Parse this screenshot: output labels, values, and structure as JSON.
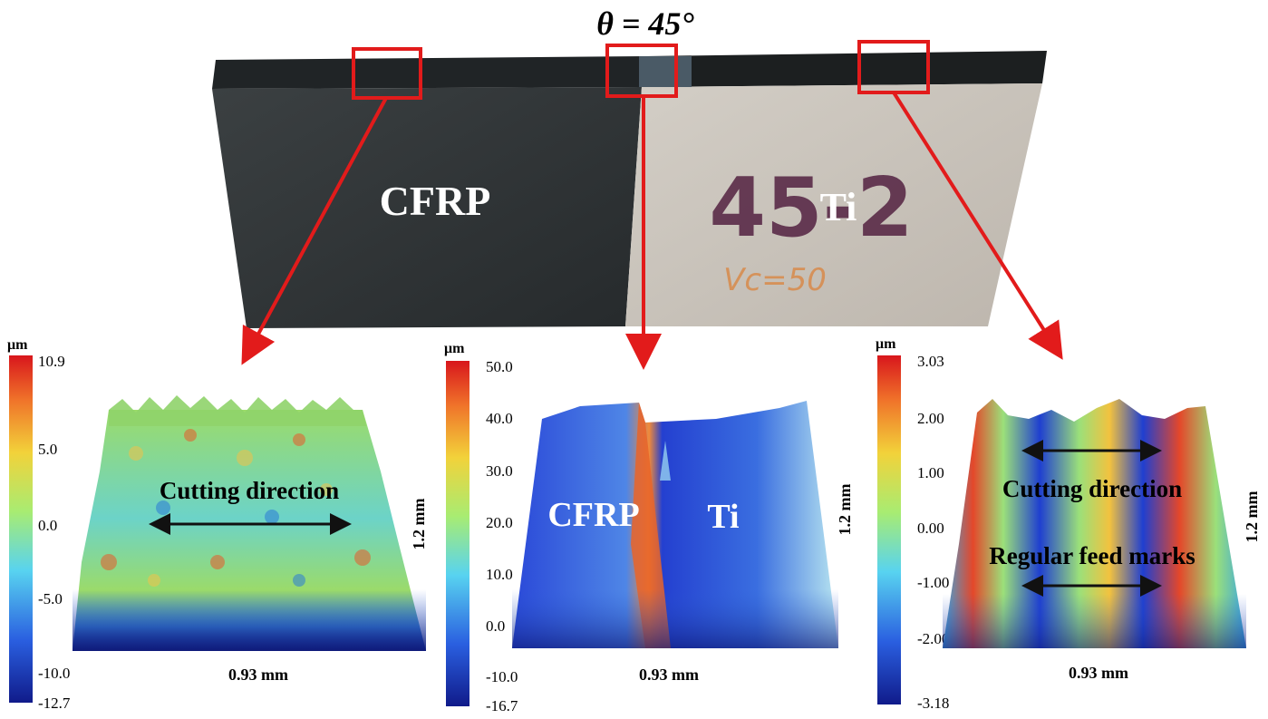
{
  "title": "θ = 45°",
  "specimen": {
    "left_label": "CFRP",
    "right_label": "Ti",
    "marker_number": "45-2",
    "marker_note": "Vc=50"
  },
  "unit": "μm",
  "length_label": "0.93 mm",
  "width_label": "1.2 mm",
  "panels": [
    {
      "region": "CFRP",
      "ticks": [
        "10.9",
        "5.0",
        "0.0",
        "-5.0",
        "-10.0",
        "-12.7"
      ],
      "annotations": [
        "Cutting direction"
      ],
      "surface_colors": [
        "#2b7bd6",
        "#6cd3c8",
        "#9bdb6a",
        "#f0c24a",
        "#e85a2a"
      ]
    },
    {
      "region": "CFRP-Ti interface",
      "ticks": [
        "50.0",
        "40.0",
        "30.0",
        "20.0",
        "10.0",
        "0.0",
        "-10.0",
        "-16.7"
      ],
      "annotations": [
        "CFRP",
        "Ti"
      ],
      "surface_colors": [
        "#2a3fd0",
        "#3f6ee0",
        "#7fb3ea",
        "#b9e6f0",
        "#f08a3a"
      ]
    },
    {
      "region": "Ti",
      "ticks": [
        "3.03",
        "2.00",
        "1.00",
        "0.00",
        "-1.00",
        "-2.00",
        "-3.18"
      ],
      "annotations": [
        "Cutting direction",
        "Regular feed marks"
      ],
      "surface_colors": [
        "#1f3fd0",
        "#3aa6e0",
        "#9be07a",
        "#f2c23f",
        "#e4472a"
      ]
    }
  ],
  "colors": {
    "highlight_box": "#e21b1b",
    "cfrp_plate": "#2f3436",
    "ti_plate": "#c9c3bb"
  }
}
